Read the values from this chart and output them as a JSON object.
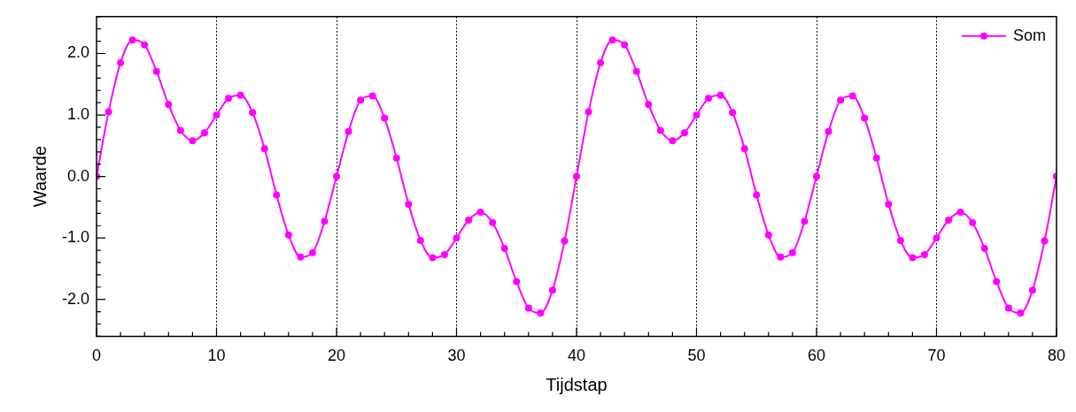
{
  "chart_data": {
    "type": "line",
    "xlabel": "Tijdstap",
    "ylabel": "Waarde",
    "x": [
      0,
      1,
      2,
      3,
      4,
      5,
      6,
      7,
      8,
      9,
      10,
      11,
      12,
      13,
      14,
      15,
      16,
      17,
      18,
      19,
      20,
      21,
      22,
      23,
      24,
      25,
      26,
      27,
      28,
      29,
      30,
      31,
      32,
      33,
      34,
      35,
      36,
      37,
      38,
      39,
      40,
      41,
      42,
      43,
      44,
      45,
      46,
      47,
      48,
      49,
      50,
      51,
      52,
      53,
      54,
      55,
      56,
      57,
      58,
      59,
      60,
      61,
      62,
      63,
      64,
      65,
      66,
      67,
      68,
      69,
      70,
      71,
      72,
      73,
      74,
      75,
      76,
      77,
      78,
      79,
      80
    ],
    "series": [
      {
        "name": "Som",
        "color": "#ff00ff",
        "values": [
          0,
          1.05,
          1.85,
          2.22,
          2.14,
          1.71,
          1.17,
          0.75,
          0.58,
          0.71,
          1.0,
          1.27,
          1.32,
          1.04,
          0.45,
          -0.3,
          -0.95,
          -1.31,
          -1.24,
          -0.73,
          0,
          0.73,
          1.24,
          1.31,
          0.95,
          0.3,
          -0.45,
          -1.04,
          -1.32,
          -1.27,
          -1.0,
          -0.71,
          -0.58,
          -0.75,
          -1.17,
          -1.71,
          -2.14,
          -2.22,
          -1.85,
          -1.05,
          0,
          1.05,
          1.85,
          2.22,
          2.14,
          1.71,
          1.17,
          0.75,
          0.58,
          0.71,
          1.0,
          1.27,
          1.32,
          1.04,
          0.45,
          -0.3,
          -0.95,
          -1.31,
          -1.24,
          -0.73,
          0,
          0.73,
          1.24,
          1.31,
          0.95,
          0.3,
          -0.45,
          -1.04,
          -1.32,
          -1.27,
          -1.0,
          -0.71,
          -0.58,
          -0.75,
          -1.17,
          -1.71,
          -2.14,
          -2.22,
          -1.85,
          -1.05,
          0
        ]
      }
    ],
    "xlim": [
      0,
      80
    ],
    "xticks": [
      0,
      10,
      20,
      30,
      40,
      50,
      60,
      70,
      80
    ],
    "ylim": [
      -2.6,
      2.6
    ],
    "yticks": [
      {
        "value": -2,
        "label": "-2.0"
      },
      {
        "value": -1,
        "label": "-1.0"
      },
      {
        "value": 0,
        "label": "0.0"
      },
      {
        "value": 1,
        "label": "1.0"
      },
      {
        "value": 2,
        "label": "2.0"
      }
    ],
    "grid": "x",
    "legend": "top right",
    "marker": "circle",
    "line_style": "solid"
  }
}
